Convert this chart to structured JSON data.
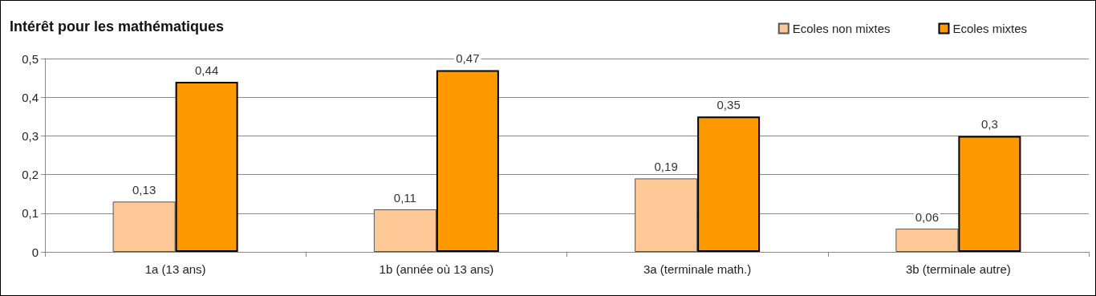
{
  "chart_data": {
    "type": "bar",
    "title": "Intérêt pour les mathématiques",
    "categories": [
      "1a (13 ans)",
      "1b (année où 13 ans)",
      "3a (terminale math.)",
      "3b (terminale autre)"
    ],
    "series": [
      {
        "name": "Ecoles non mixtes",
        "color": "#ffc896",
        "values": [
          0.13,
          0.11,
          0.19,
          0.06
        ],
        "value_labels": [
          "0,13",
          "0,11",
          "0,19",
          "0,06"
        ]
      },
      {
        "name": "Ecoles mixtes",
        "color": "#ff9900",
        "values": [
          0.44,
          0.47,
          0.35,
          0.3
        ],
        "value_labels": [
          "0,44",
          "0,47",
          "0,35",
          "0,3"
        ]
      }
    ],
    "ylim": [
      0,
      0.5
    ],
    "yticks": [
      {
        "value": 0,
        "label": "0"
      },
      {
        "value": 0.1,
        "label": "0,1"
      },
      {
        "value": 0.2,
        "label": "0,2"
      },
      {
        "value": 0.3,
        "label": "0,3"
      },
      {
        "value": 0.4,
        "label": "0,4"
      },
      {
        "value": 0.5,
        "label": "0,5"
      }
    ],
    "grid": "y",
    "legend": "top right"
  }
}
